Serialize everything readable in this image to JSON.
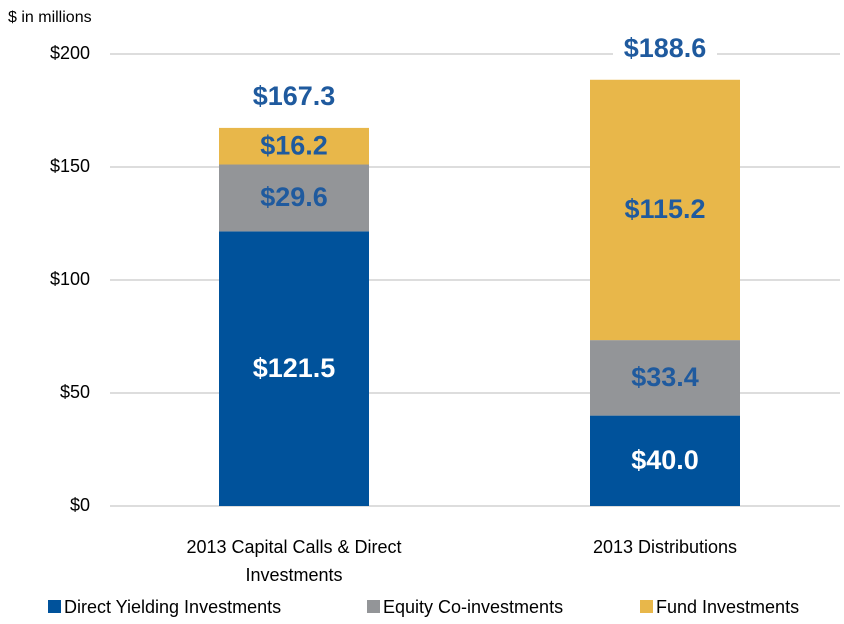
{
  "chart_data": {
    "type": "stacked_bar",
    "axis_label": "$ in millions",
    "categories": [
      "2013 Capital Calls & Direct Investments",
      "2013 Distributions"
    ],
    "series": [
      {
        "name": "Direct Yielding Investments",
        "color": "#00529b",
        "values": [
          121.5,
          40.0
        ],
        "value_labels": [
          "$121.5",
          "$40.0"
        ]
      },
      {
        "name": "Equity Co-investments",
        "color": "#939598",
        "values": [
          29.6,
          33.4
        ],
        "value_labels": [
          "$29.6",
          "$33.4"
        ]
      },
      {
        "name": "Fund Investments",
        "color": "#e8b74a",
        "values": [
          16.2,
          115.2
        ],
        "value_labels": [
          "$16.2",
          "$115.2"
        ]
      }
    ],
    "totals": {
      "values": [
        167.3,
        188.6
      ],
      "value_labels": [
        "$167.3",
        "$188.6"
      ]
    },
    "ylim": [
      0,
      200
    ],
    "yticks": [
      {
        "value": 0,
        "label": "$0"
      },
      {
        "value": 50,
        "label": "$50"
      },
      {
        "value": 100,
        "label": "$100"
      },
      {
        "value": 150,
        "label": "$150"
      },
      {
        "value": 200,
        "label": "$200"
      }
    ],
    "grid": true,
    "legend": "bottom"
  }
}
